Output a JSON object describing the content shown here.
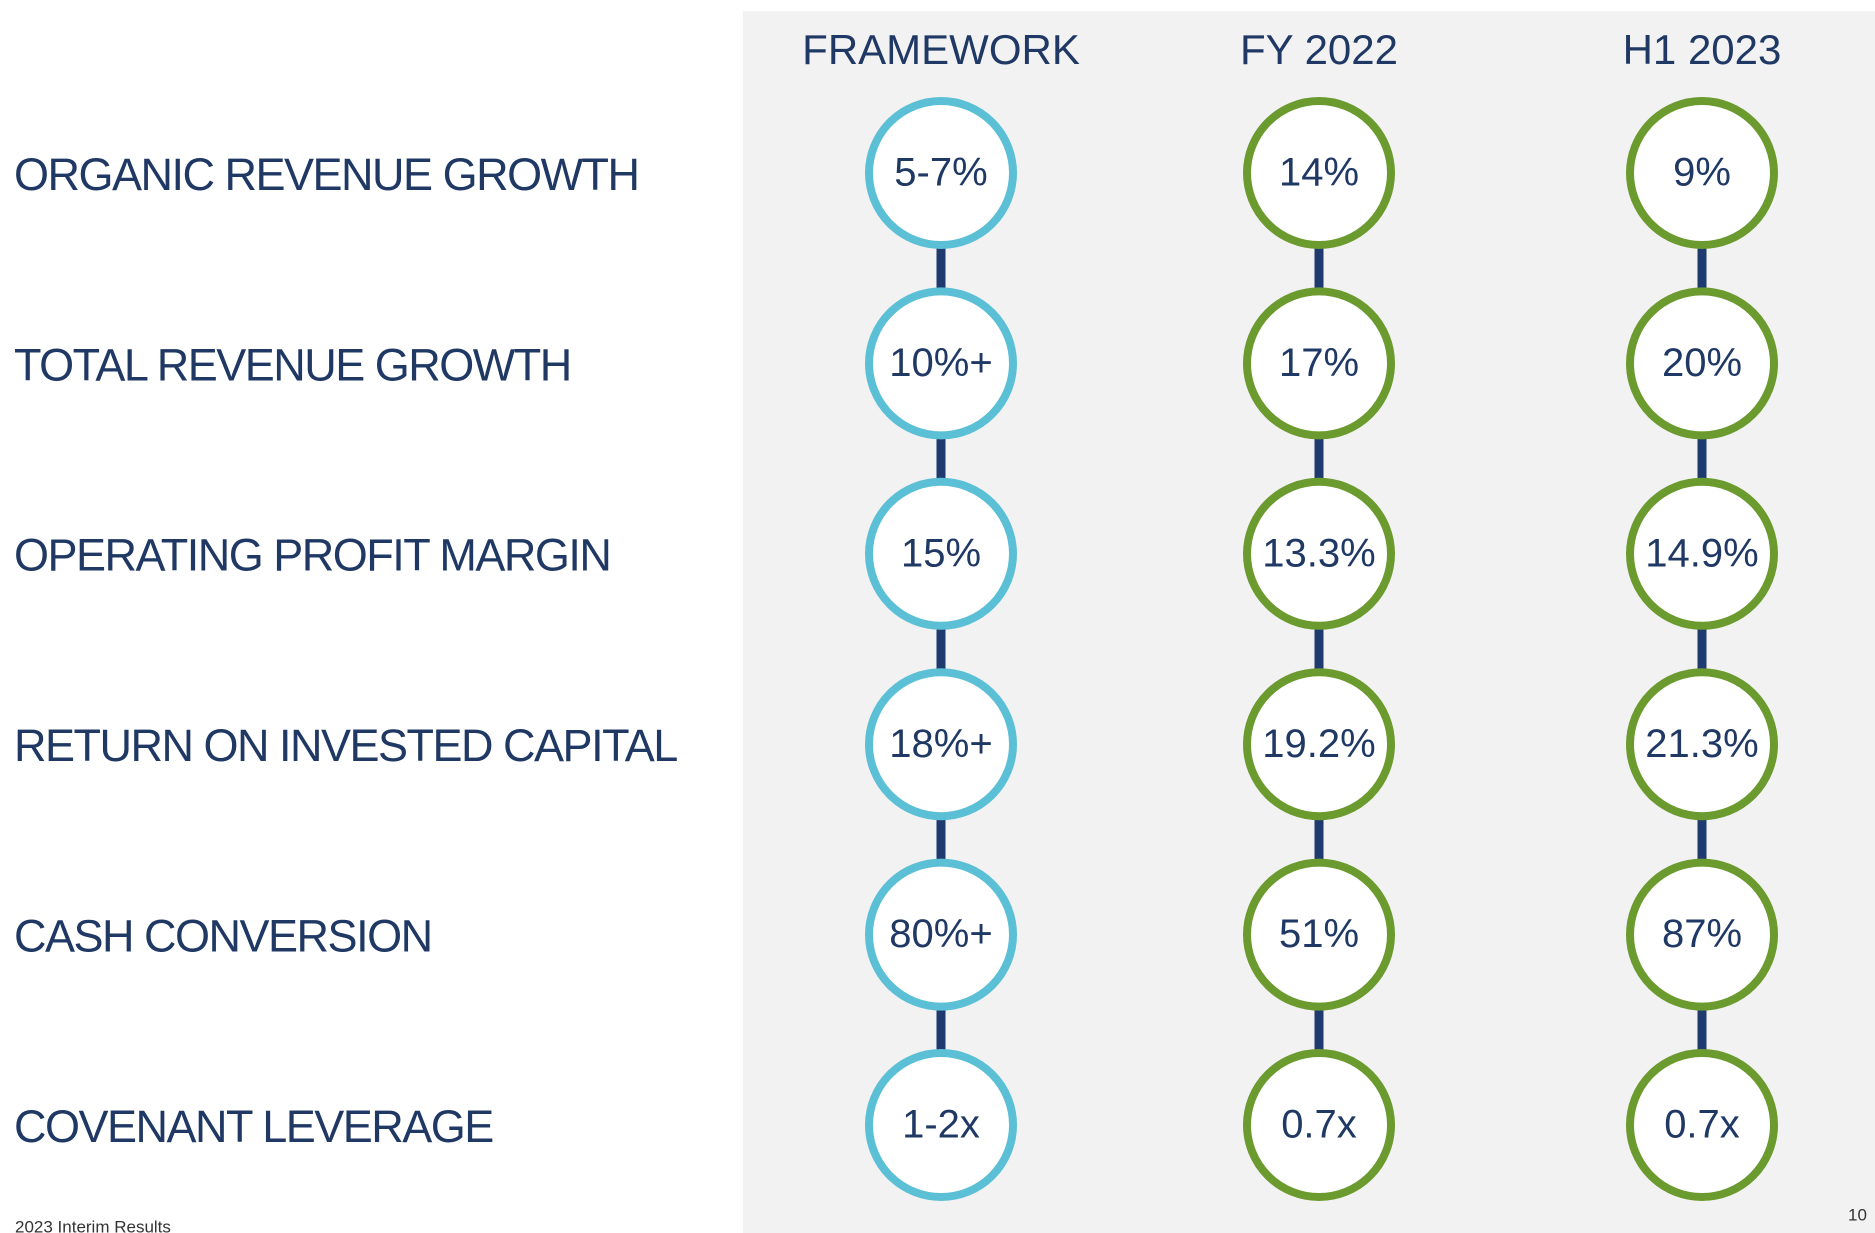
{
  "columns": [
    "FRAMEWORK",
    "FY 2022",
    "H1 2023"
  ],
  "rows": [
    {
      "label": "ORGANIC REVENUE GROWTH",
      "values": [
        "5-7%",
        "14%",
        "9%"
      ]
    },
    {
      "label": "TOTAL REVENUE GROWTH",
      "values": [
        "10%+",
        "17%",
        "20%"
      ]
    },
    {
      "label": "OPERATING PROFIT MARGIN",
      "values": [
        "15%",
        "13.3%",
        "14.9%"
      ]
    },
    {
      "label": "RETURN ON INVESTED CAPITAL",
      "values": [
        "18%+",
        "19.2%",
        "21.3%"
      ]
    },
    {
      "label": "CASH CONVERSION",
      "values": [
        "80%+",
        "51%",
        "87%"
      ]
    },
    {
      "label": "COVENANT LEVERAGE",
      "values": [
        "1-2x",
        "0.7x",
        "0.7x"
      ]
    }
  ],
  "footer": "2023 Interim Results",
  "page_number": "10"
}
